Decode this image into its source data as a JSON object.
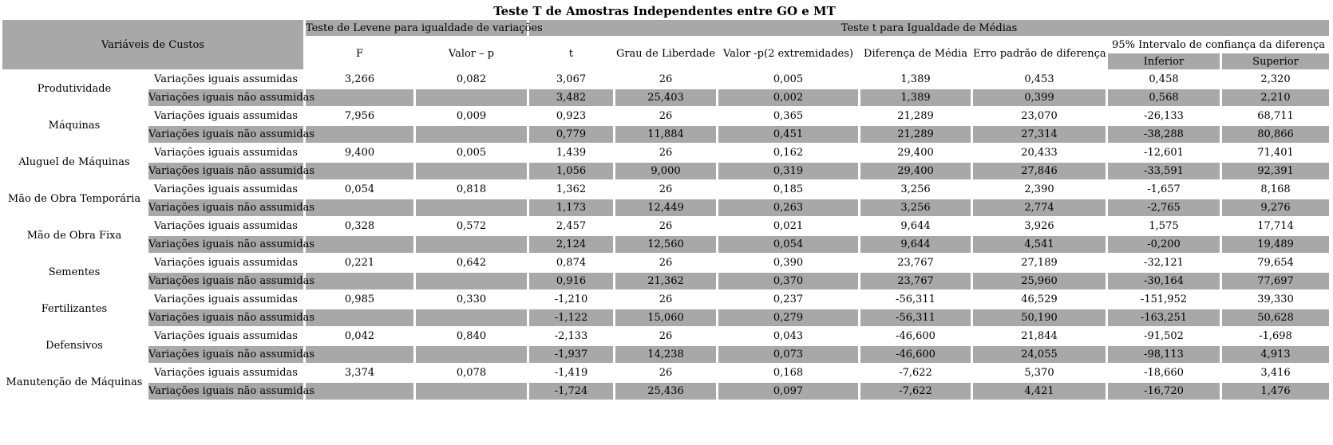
{
  "title": "Teste T de Amostras Independentes entre GO e MT",
  "colors": {
    "band_gray": "#a8a8a8"
  },
  "header": {
    "variables_label": "Variáveis de Custos",
    "levene_label": "Teste de Levene para igualdade de variações",
    "ttest_label": "Teste t para Igualdade de Médias",
    "col_f": "F",
    "col_p": "Valor – p",
    "col_t": "t",
    "col_df": "Grau de Liberdade",
    "col_p2": "Valor -p(2 extremidades)",
    "col_diff": "Diferença de Média",
    "col_se": "Erro padrão de diferença",
    "ci_label": "95% Intervalo de confiança da diferença",
    "col_lower": "Inferior",
    "col_upper": "Superior"
  },
  "row_labels": {
    "equal": "Variações iguais assumidas",
    "unequal": "Variações iguais não assumidas"
  },
  "variables": [
    {
      "name": "Produtividade",
      "equal": {
        "f": "3,266",
        "p": "0,082",
        "t": "3,067",
        "df": "26",
        "p2": "0,005",
        "diff": "1,389",
        "se": "0,453",
        "lower": "0,458",
        "upper": "2,320"
      },
      "unequal": {
        "t": "3,482",
        "df": "25,403",
        "p2": "0,002",
        "diff": "1,389",
        "se": "0,399",
        "lower": "0,568",
        "upper": "2,210"
      }
    },
    {
      "name": "Máquinas",
      "equal": {
        "f": "7,956",
        "p": "0,009",
        "t": "0,923",
        "df": "26",
        "p2": "0,365",
        "diff": "21,289",
        "se": "23,070",
        "lower": "-26,133",
        "upper": "68,711"
      },
      "unequal": {
        "t": "0,779",
        "df": "11,884",
        "p2": "0,451",
        "diff": "21,289",
        "se": "27,314",
        "lower": "-38,288",
        "upper": "80,866"
      }
    },
    {
      "name": "Aluguel de Máquinas",
      "equal": {
        "f": "9,400",
        "p": "0,005",
        "t": "1,439",
        "df": "26",
        "p2": "0,162",
        "diff": "29,400",
        "se": "20,433",
        "lower": "-12,601",
        "upper": "71,401"
      },
      "unequal": {
        "t": "1,056",
        "df": "9,000",
        "p2": "0,319",
        "diff": "29,400",
        "se": "27,846",
        "lower": "-33,591",
        "upper": "92,391"
      }
    },
    {
      "name": "Mão de Obra Temporária",
      "equal": {
        "f": "0,054",
        "p": "0,818",
        "t": "1,362",
        "df": "26",
        "p2": "0,185",
        "diff": "3,256",
        "se": "2,390",
        "lower": "-1,657",
        "upper": "8,168"
      },
      "unequal": {
        "t": "1,173",
        "df": "12,449",
        "p2": "0,263",
        "diff": "3,256",
        "se": "2,774",
        "lower": "-2,765",
        "upper": "9,276"
      }
    },
    {
      "name": "Mão de Obra Fixa",
      "equal": {
        "f": "0,328",
        "p": "0,572",
        "t": "2,457",
        "df": "26",
        "p2": "0,021",
        "diff": "9,644",
        "se": "3,926",
        "lower": "1,575",
        "upper": "17,714"
      },
      "unequal": {
        "t": "2,124",
        "df": "12,560",
        "p2": "0,054",
        "diff": "9,644",
        "se": "4,541",
        "lower": "-0,200",
        "upper": "19,489"
      }
    },
    {
      "name": "Sementes",
      "equal": {
        "f": "0,221",
        "p": "0,642",
        "t": "0,874",
        "df": "26",
        "p2": "0,390",
        "diff": "23,767",
        "se": "27,189",
        "lower": "-32,121",
        "upper": "79,654"
      },
      "unequal": {
        "t": "0,916",
        "df": "21,362",
        "p2": "0,370",
        "diff": "23,767",
        "se": "25,960",
        "lower": "-30,164",
        "upper": "77,697"
      }
    },
    {
      "name": "Fertilizantes",
      "equal": {
        "f": "0,985",
        "p": "0,330",
        "t": "-1,210",
        "df": "26",
        "p2": "0,237",
        "diff": "-56,311",
        "se": "46,529",
        "lower": "-151,952",
        "upper": "39,330"
      },
      "unequal": {
        "t": "-1,122",
        "df": "15,060",
        "p2": "0,279",
        "diff": "-56,311",
        "se": "50,190",
        "lower": "-163,251",
        "upper": "50,628"
      }
    },
    {
      "name": "Defensivos",
      "equal": {
        "f": "0,042",
        "p": "0,840",
        "t": "-2,133",
        "df": "26",
        "p2": "0,043",
        "diff": "-46,600",
        "se": "21,844",
        "lower": "-91,502",
        "upper": "-1,698"
      },
      "unequal": {
        "t": "-1,937",
        "df": "14,238",
        "p2": "0,073",
        "diff": "-46,600",
        "se": "24,055",
        "lower": "-98,113",
        "upper": "4,913"
      }
    },
    {
      "name": "Manutenção de Máquinas",
      "equal": {
        "f": "3,374",
        "p": "0,078",
        "t": "-1,419",
        "df": "26",
        "p2": "0,168",
        "diff": "-7,622",
        "se": "5,370",
        "lower": "-18,660",
        "upper": "3,416"
      },
      "unequal": {
        "t": "-1,724",
        "df": "25,436",
        "p2": "0,097",
        "diff": "-7,622",
        "se": "4,421",
        "lower": "-16,720",
        "upper": "1,476"
      }
    }
  ]
}
